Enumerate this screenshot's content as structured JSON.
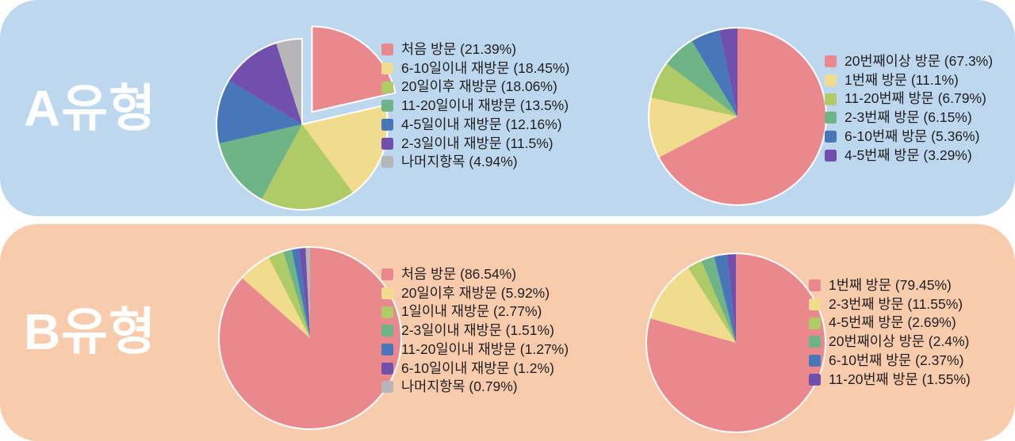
{
  "panels": [
    {
      "label": "A유형",
      "bg": "#BDD7EE",
      "label_color": "#FFFFFF"
    },
    {
      "label": "B유형",
      "bg": "#F8CBAD",
      "label_color": "#FFFFFF"
    }
  ],
  "palette": {
    "pink": "#E9898D",
    "yellow": "#F1DC8E",
    "yellow_green": "#AECB66",
    "green": "#6FB487",
    "blue": "#4777B9",
    "purple": "#7150AD",
    "gray": "#B6B6B8",
    "pie_rim": "#FFFFFF",
    "legend_text": "#1F1F1F"
  },
  "chart_data": [
    {
      "type": "pie",
      "panel": "A유형",
      "position": "left",
      "legend_position": "right",
      "start_angle": "12-oclock-clockwise",
      "explode_index": 0,
      "categories": [
        "처음 방문",
        "6-10일이내 재방문",
        "20일이후 재방문",
        "11-20일이내 재방문",
        "4-5일이내 재방문",
        "2-3일이내 재방문",
        "나머지항목"
      ],
      "values": [
        21.39,
        18.45,
        18.06,
        13.5,
        12.16,
        11.5,
        4.94
      ],
      "colors": [
        "#E9898D",
        "#F1DC8E",
        "#AECB66",
        "#6FB487",
        "#4777B9",
        "#7150AD",
        "#B6B6B8"
      ]
    },
    {
      "type": "pie",
      "panel": "A유형",
      "position": "right",
      "legend_position": "right",
      "start_angle": "12-oclock-clockwise",
      "explode_index": null,
      "categories": [
        "20번째이상 방문",
        "1번째 방문",
        "11-20번째 방문",
        "2-3번째 방문",
        "6-10번째 방문",
        "4-5번째 방문"
      ],
      "values": [
        67.3,
        11.1,
        6.79,
        6.15,
        5.36,
        3.29
      ],
      "colors": [
        "#E9898D",
        "#F1DC8E",
        "#AECB66",
        "#6FB487",
        "#4777B9",
        "#7150AD"
      ]
    },
    {
      "type": "pie",
      "panel": "B유형",
      "position": "left",
      "legend_position": "right",
      "start_angle": "12-oclock-clockwise",
      "explode_index": null,
      "categories": [
        "처음 방문",
        "20일이후 재방문",
        "1일이내 재방문",
        "2-3일이내 재방문",
        "11-20일이내 재방문",
        "6-10일이내 재방문",
        "나머지항목"
      ],
      "values": [
        86.54,
        5.92,
        2.77,
        1.51,
        1.27,
        1.2,
        0.79
      ],
      "colors": [
        "#E9898D",
        "#F1DC8E",
        "#AECB66",
        "#6FB487",
        "#4777B9",
        "#7150AD",
        "#B6B6B8"
      ]
    },
    {
      "type": "pie",
      "panel": "B유형",
      "position": "right",
      "legend_position": "right",
      "start_angle": "12-oclock-clockwise",
      "explode_index": null,
      "categories": [
        "1번째 방문",
        "2-3번째 방문",
        "4-5번째 방문",
        "20번째이상 방문",
        "6-10번째 방문",
        "11-20번째 방문"
      ],
      "values": [
        79.45,
        11.55,
        2.69,
        2.4,
        2.37,
        1.55
      ],
      "colors": [
        "#E9898D",
        "#F1DC8E",
        "#AECB66",
        "#6FB487",
        "#4777B9",
        "#7150AD"
      ]
    }
  ],
  "legend_format": "{category} ({value}%)"
}
